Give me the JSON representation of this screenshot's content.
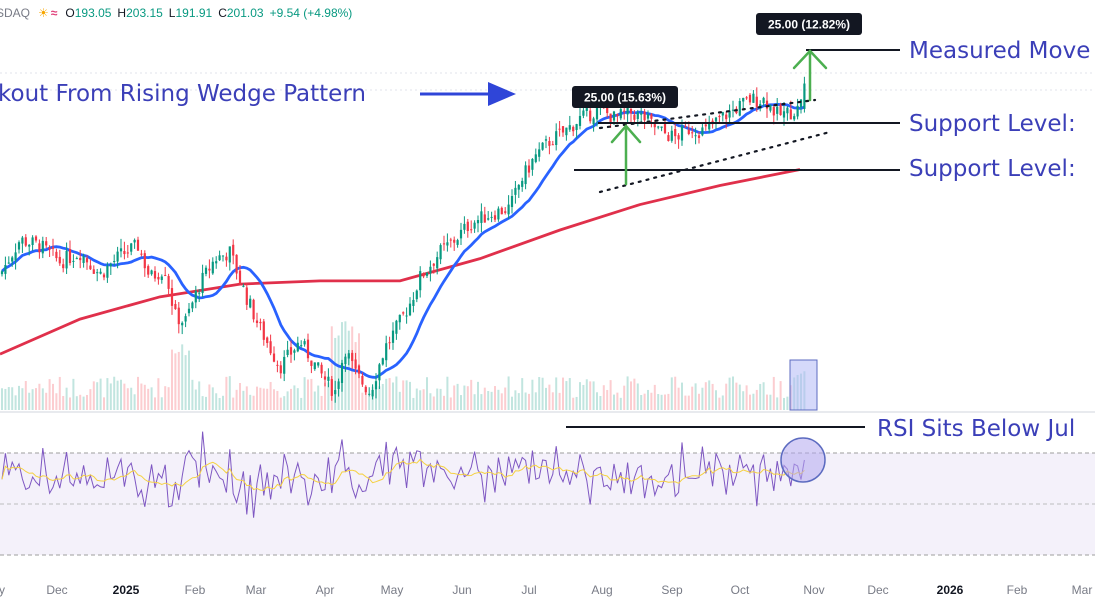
{
  "header": {
    "symbol": "SDAQ",
    "icon_names": [
      "sun-cloud-icon",
      "wave-icon"
    ],
    "open_label": "O",
    "open": "193.05",
    "high_label": "H",
    "high": "203.15",
    "low_label": "L",
    "low": "191.91",
    "close_label": "C",
    "close": "201.03",
    "change": "+9.54 (+4.98%)"
  },
  "colors": {
    "up": "#089981",
    "down": "#f23645",
    "ma50": "#2962ff",
    "ma200": "#e0304b",
    "annotation": "#3b3fb8",
    "rsi": "#7e57c2",
    "rsi_ma": "#f5d142",
    "arrow": "#4caf50"
  },
  "annotations": {
    "wedge": "kout From Rising Wedge Pattern",
    "measured": "Measured Move",
    "support1": "Support Level:",
    "support2": "Support Level:",
    "rsi_note": "RSI Sits Below Jul",
    "badge1": "25.00 (15.63%)",
    "badge2": "25.00 (12.82%)"
  },
  "chart_data": {
    "type": "candlestick",
    "title": "",
    "xlabel": "",
    "ylabel": "",
    "grid": false,
    "x_ticks": [
      "y",
      "Dec",
      "2025",
      "Feb",
      "Mar",
      "Apr",
      "May",
      "Jun",
      "Jul",
      "Aug",
      "Sep",
      "Oct",
      "Nov",
      "Dec",
      "2026",
      "Feb",
      "Mar"
    ],
    "bold_ticks": [
      "2025",
      "2026"
    ],
    "price_range": [
      100,
      210
    ],
    "last_bar": {
      "open": 193.05,
      "high": 203.15,
      "low": 191.91,
      "close": 201.03
    },
    "series": [
      {
        "name": "",
        "kind": "candles",
        "approx_close_by_month": {
          "Nov": 146,
          "Dec": 147,
          "Jan": 146,
          "Feb": 142,
          "Mar": 124,
          "Apr": 118,
          "May": 132,
          "Jun": 150,
          "Jul": 166,
          "Aug": 175,
          "Sep": 178,
          "Oct": 182,
          "Late-Oct": 201.03
        }
      },
      {
        "name": "",
        "kind": "moving-average-50",
        "color": "#2962ff"
      },
      {
        "name": "",
        "kind": "moving-average-200",
        "color": "#e0304b"
      }
    ],
    "levels": [
      {
        "label": "Support Level:",
        "value": 182
      },
      {
        "label": "Support Level:",
        "value": 172
      },
      {
        "label": "Measured Move",
        "value": 203
      }
    ],
    "measured_moves": [
      {
        "label": "25.00 (15.63%)",
        "value": 25.0,
        "pct": 15.63
      },
      {
        "label": "25.00 (12.82%)",
        "value": 25.0,
        "pct": 12.82
      }
    ],
    "rsi": {
      "range": [
        0,
        100
      ],
      "upper_band": 70,
      "lower_band": 30
    }
  }
}
